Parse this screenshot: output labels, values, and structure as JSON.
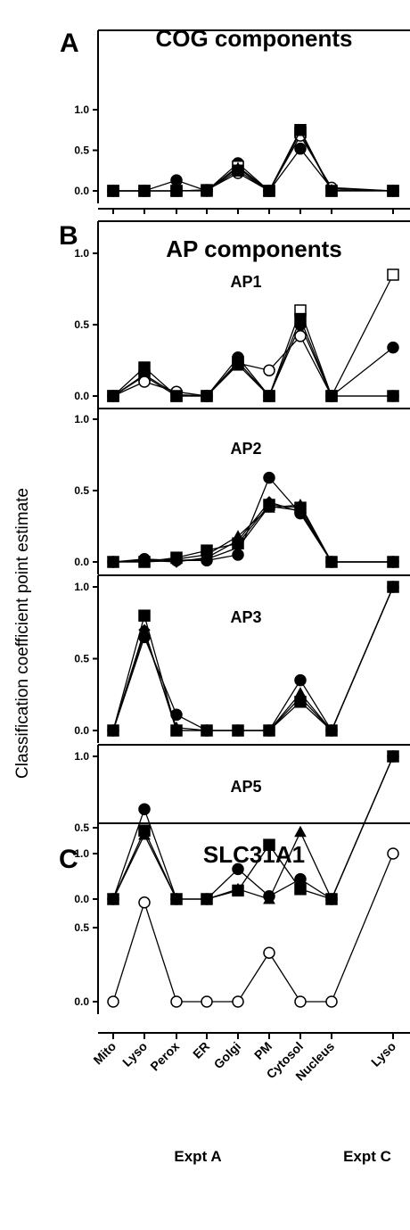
{
  "figure": {
    "ylabel": "Classification coefficient point estimate",
    "categories": [
      "Mito",
      "Lyso",
      "Perox",
      "ER",
      "Golgi",
      "PM",
      "Cytosol",
      "Nucleus",
      "Lyso"
    ],
    "group_labels": [
      "Expt A",
      "Expt C"
    ]
  },
  "chart_data": [
    {
      "type": "line",
      "panel_letter": "A",
      "title": "COG components",
      "subtitle": "",
      "ylim": [
        0,
        1.0
      ],
      "yticks": [
        "0.0",
        "0.5",
        "1.0"
      ],
      "series": [
        {
          "marker": "circle-filled",
          "values": [
            0,
            0,
            0.13,
            0,
            0.34,
            0,
            0.52,
            0.03,
            0
          ]
        },
        {
          "marker": "square-open",
          "values": [
            0,
            0,
            0,
            0,
            0.3,
            0,
            0.72,
            0,
            0
          ]
        },
        {
          "marker": "circle-open",
          "values": [
            0,
            0,
            0,
            0.01,
            0.22,
            0,
            0.68,
            0.04,
            0
          ]
        },
        {
          "marker": "triangle-filled",
          "values": [
            0,
            0,
            0,
            0.01,
            0.28,
            0,
            0.74,
            0.01,
            0
          ]
        },
        {
          "marker": "square-filled",
          "values": [
            0,
            0,
            0,
            0.01,
            0.25,
            0,
            0.75,
            0,
            0
          ]
        }
      ]
    },
    {
      "type": "line",
      "panel_letter": "B",
      "title": "AP components",
      "subtitle": "AP1",
      "ylim": [
        0,
        1.0
      ],
      "yticks": [
        "0.0",
        "0.5",
        "1.0"
      ],
      "series": [
        {
          "marker": "square-open",
          "values": [
            0,
            0.14,
            0,
            0,
            0.24,
            0,
            0.6,
            0,
            0.85
          ]
        },
        {
          "marker": "circle-filled",
          "values": [
            0,
            0.15,
            0.01,
            0,
            0.27,
            0,
            0.5,
            0,
            0.34
          ]
        },
        {
          "marker": "circle-open",
          "values": [
            0,
            0.1,
            0.03,
            0,
            0.23,
            0.18,
            0.42,
            0,
            0
          ]
        },
        {
          "marker": "square-filled",
          "values": [
            0,
            0.2,
            0,
            0,
            0.22,
            0,
            0.54,
            0,
            0
          ]
        }
      ]
    },
    {
      "type": "line",
      "panel_letter": "",
      "title": "",
      "subtitle": "AP2",
      "ylim": [
        0,
        1.0
      ],
      "yticks": [
        "0.0",
        "0.5",
        "1.0"
      ],
      "series": [
        {
          "marker": "circle-filled",
          "values": [
            0,
            0.02,
            0.01,
            0.01,
            0.05,
            0.59,
            0.34,
            0,
            0
          ]
        },
        {
          "marker": "square-filled",
          "values": [
            0,
            0,
            0.03,
            0.08,
            0.13,
            0.4,
            0.38,
            0,
            0
          ]
        },
        {
          "marker": "triangle-filled",
          "values": [
            0,
            0.01,
            0.02,
            0.05,
            0.18,
            0.38,
            0.4,
            0,
            0
          ]
        },
        {
          "marker": "inverted-triangle-filled",
          "values": [
            0,
            0,
            0.01,
            0.02,
            0.1,
            0.39,
            0.36,
            0,
            0
          ]
        },
        {
          "marker": "diamond-filled",
          "values": [
            0,
            0.01,
            0,
            0.03,
            0.15,
            0.42,
            0.35,
            0,
            0
          ]
        }
      ]
    },
    {
      "type": "line",
      "panel_letter": "",
      "title": "",
      "subtitle": "AP3",
      "ylim": [
        0,
        1.0
      ],
      "yticks": [
        "0.0",
        "0.5",
        "1.0"
      ],
      "series": [
        {
          "marker": "square-filled",
          "values": [
            0,
            0.8,
            0,
            0,
            0,
            0,
            0.2,
            0,
            1.0
          ]
        },
        {
          "marker": "circle-filled",
          "values": [
            0,
            0.65,
            0.11,
            0,
            0,
            0,
            0.35,
            0,
            1.0
          ]
        },
        {
          "marker": "triangle-filled",
          "values": [
            0,
            0.68,
            0.02,
            0,
            0,
            0,
            0.26,
            0,
            1.0
          ]
        },
        {
          "marker": "diamond-filled",
          "values": [
            0,
            0.7,
            0,
            0,
            0,
            0,
            0.23,
            0,
            1.0
          ]
        }
      ]
    },
    {
      "type": "line",
      "panel_letter": "",
      "title": "",
      "subtitle": "AP5",
      "ylim": [
        0,
        1.0
      ],
      "yticks": [
        "0.0",
        "0.5",
        "1.0"
      ],
      "series": [
        {
          "marker": "circle-filled",
          "values": [
            0,
            0.63,
            0,
            0,
            0.21,
            0.02,
            0.14,
            0,
            1.0
          ]
        },
        {
          "marker": "square-filled",
          "values": [
            0,
            0.48,
            0,
            0,
            0.06,
            0.38,
            0.07,
            0,
            1.0
          ]
        },
        {
          "marker": "triangle-filled",
          "values": [
            0,
            0.45,
            0,
            0,
            0.07,
            0,
            0.47,
            0,
            1.0
          ]
        }
      ]
    },
    {
      "type": "line",
      "panel_letter": "C",
      "title": "SLC31A1",
      "subtitle": "",
      "ylim": [
        0,
        1.0
      ],
      "yticks": [
        "0.0",
        "0.5",
        "1.0"
      ],
      "series": [
        {
          "marker": "circle-open",
          "values": [
            0,
            0.67,
            0,
            0,
            0,
            0.33,
            0,
            0,
            1.0
          ]
        }
      ]
    }
  ]
}
